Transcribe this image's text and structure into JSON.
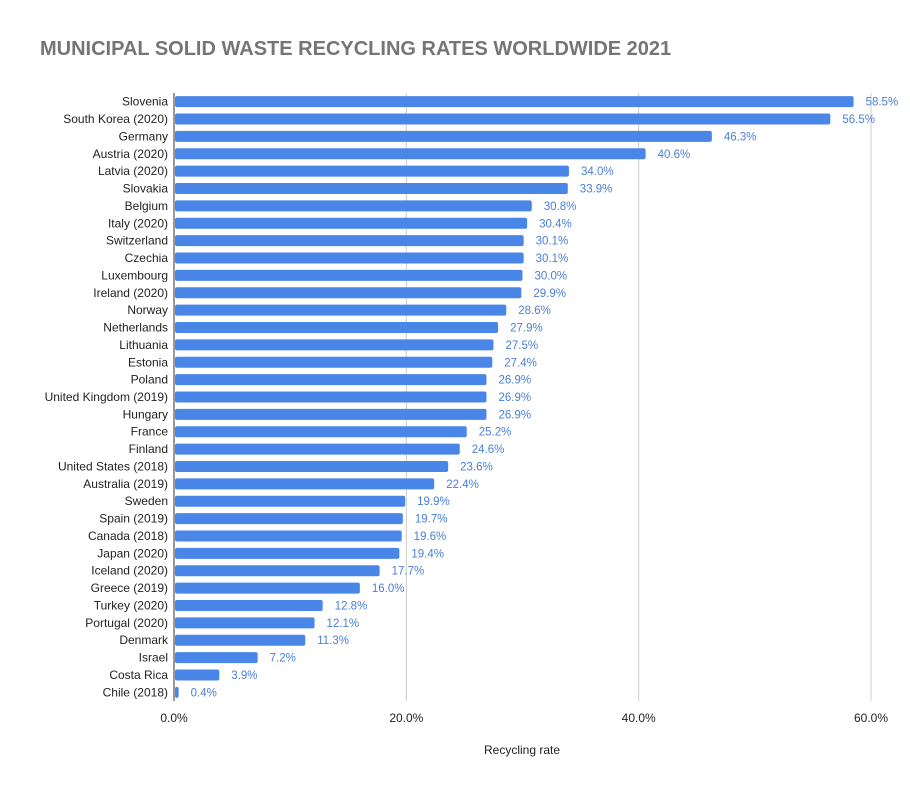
{
  "chart_data": {
    "type": "bar",
    "orientation": "horizontal",
    "title": "MUNICIPAL SOLID WASTE RECYCLING RATES WORLDWIDE 2021",
    "xlabel": "Recycling rate",
    "ylabel": "",
    "xlim": [
      0,
      60
    ],
    "ticks": [
      "0.0%",
      "20.0%",
      "40.0%",
      "60.0%"
    ],
    "tick_values": [
      0,
      20,
      40,
      60
    ],
    "grid": true,
    "bar_color": "#4a86e8",
    "label_color": "#4a7fd6",
    "categories": [
      "Slovenia",
      "South Korea (2020)",
      "Germany",
      "Austria (2020)",
      "Latvia (2020)",
      "Slovakia",
      "Belgium",
      "Italy (2020)",
      "Switzerland",
      "Czechia",
      "Luxembourg",
      "Ireland (2020)",
      "Norway",
      "Netherlands",
      "Lithuania",
      "Estonia",
      "Poland",
      "United Kingdom (2019)",
      "Hungary",
      "France",
      "Finland",
      "United States (2018)",
      "Australia (2019)",
      "Sweden",
      "Spain (2019)",
      "Canada (2018)",
      "Japan (2020)",
      "Iceland (2020)",
      "Greece (2019)",
      "Turkey (2020)",
      "Portugal (2020)",
      "Denmark",
      "Israel",
      "Costa Rica",
      "Chile (2018)"
    ],
    "values": [
      58.5,
      56.5,
      46.3,
      40.6,
      34.0,
      33.9,
      30.8,
      30.4,
      30.1,
      30.1,
      30.0,
      29.9,
      28.6,
      27.9,
      27.5,
      27.4,
      26.9,
      26.9,
      26.9,
      25.2,
      24.6,
      23.6,
      22.4,
      19.9,
      19.7,
      19.6,
      19.4,
      17.7,
      16.0,
      12.8,
      12.1,
      11.3,
      7.2,
      3.9,
      0.4
    ],
    "value_labels": [
      "58.5%",
      "56.5%",
      "46.3%",
      "40.6%",
      "34.0%",
      "33.9%",
      "30.8%",
      "30.4%",
      "30.1%",
      "30.1%",
      "30.0%",
      "29.9%",
      "28.6%",
      "27.9%",
      "27.5%",
      "27.4%",
      "26.9%",
      "26.9%",
      "26.9%",
      "25.2%",
      "24.6%",
      "23.6%",
      "22.4%",
      "19.9%",
      "19.7%",
      "19.6%",
      "19.4%",
      "17.7%",
      "16.0%",
      "12.8%",
      "12.1%",
      "11.3%",
      "7.2%",
      "3.9%",
      "0.4%"
    ]
  }
}
